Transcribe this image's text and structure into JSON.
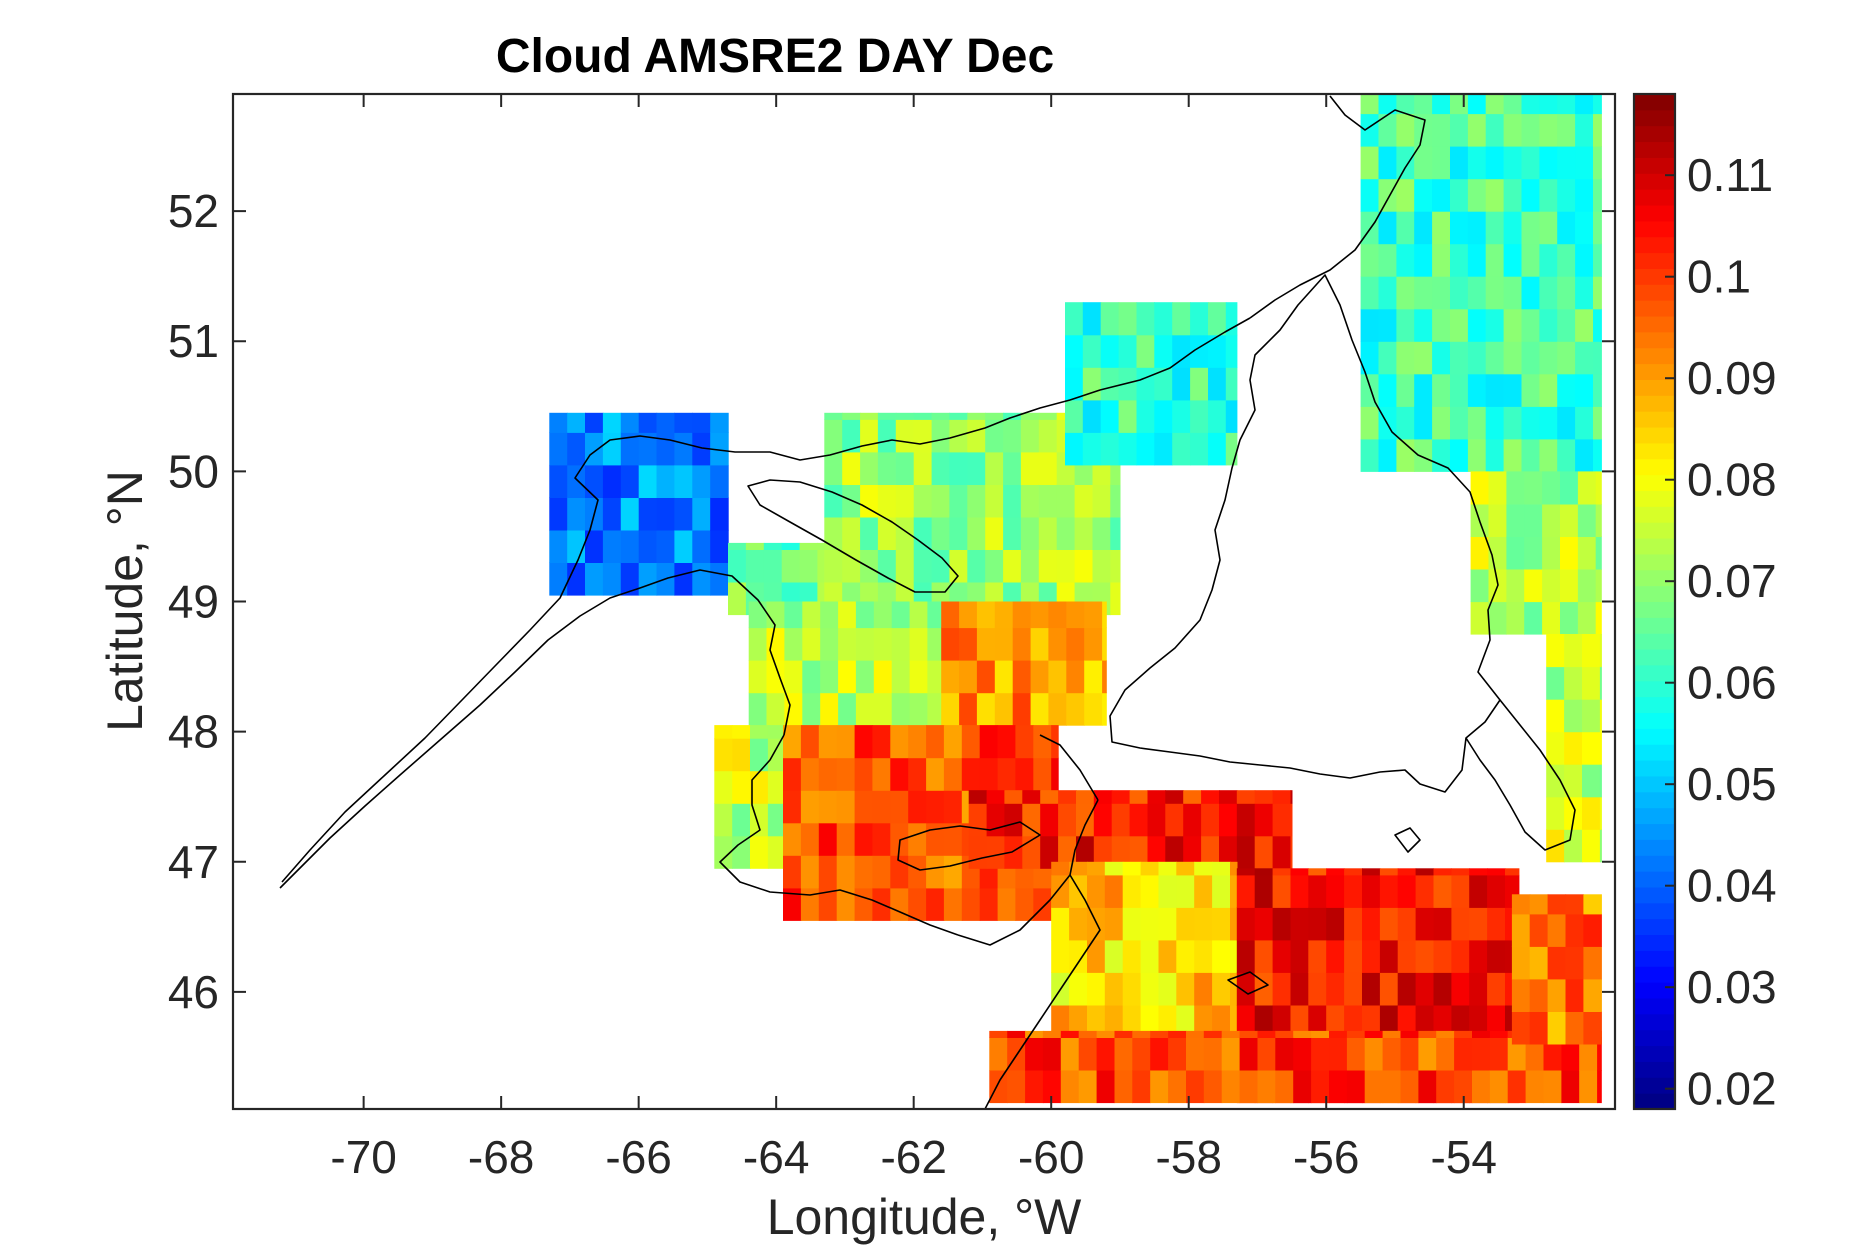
{
  "chart_data": {
    "type": "heatmap",
    "title": "Cloud AMSRE2 DAY Dec",
    "xlabel": "Longitude, °W",
    "ylabel": "Latitude, °N",
    "xlim": [
      -71.9,
      -51.8
    ],
    "ylim": [
      45.1,
      52.9
    ],
    "x_ticks": [
      -70,
      -68,
      -66,
      -64,
      -62,
      -60,
      -58,
      -56,
      -54
    ],
    "y_ticks": [
      46,
      47,
      48,
      49,
      50,
      51,
      52
    ],
    "cell_size_deg": [
      0.26,
      0.25
    ],
    "colormap": "jet",
    "colorbar": {
      "range": [
        0.018,
        0.118
      ],
      "ticks": [
        "0.02",
        "0.03",
        "0.04",
        "0.05",
        "0.06",
        "0.07",
        "0.08",
        "0.09",
        "0.1",
        "0.11"
      ],
      "location": "right"
    },
    "regions": [
      {
        "lon": [
          -67.3,
          -64.7
        ],
        "lat": [
          49.05,
          50.45
        ],
        "mean": 0.043
      },
      {
        "lon": [
          -64.7,
          -63.3
        ],
        "lat": [
          48.9,
          49.45
        ],
        "mean": 0.065
      },
      {
        "lon": [
          -63.3,
          -59.0
        ],
        "lat": [
          48.9,
          50.45
        ],
        "mean": 0.071
      },
      {
        "lon": [
          -59.8,
          -57.3
        ],
        "lat": [
          50.05,
          51.3
        ],
        "mean": 0.061
      },
      {
        "lon": [
          -64.4,
          -61.6
        ],
        "lat": [
          48.05,
          49.0
        ],
        "mean": 0.073
      },
      {
        "lon": [
          -61.6,
          -59.2
        ],
        "lat": [
          48.05,
          49.0
        ],
        "mean": 0.091
      },
      {
        "lon": [
          -64.9,
          -63.9
        ],
        "lat": [
          46.95,
          48.05
        ],
        "mean": 0.075
      },
      {
        "lon": [
          -63.9,
          -59.9
        ],
        "lat": [
          46.55,
          48.05
        ],
        "mean": 0.098
      },
      {
        "lon": [
          -61.2,
          -56.5
        ],
        "lat": [
          46.95,
          47.55
        ],
        "mean": 0.104
      },
      {
        "lon": [
          -60.0,
          -57.3
        ],
        "lat": [
          45.65,
          47.0
        ],
        "mean": 0.085
      },
      {
        "lon": [
          -57.3,
          -53.2
        ],
        "lat": [
          45.15,
          46.95
        ],
        "mean": 0.105
      },
      {
        "lon": [
          -60.9,
          -52.0
        ],
        "lat": [
          45.15,
          45.7
        ],
        "mean": 0.099
      },
      {
        "lon": [
          -53.3,
          -52.0
        ],
        "lat": [
          45.6,
          46.75
        ],
        "mean": 0.094
      },
      {
        "lon": [
          -55.5,
          -52.0
        ],
        "lat": [
          50.0,
          52.9
        ],
        "mean": 0.062
      },
      {
        "lon": [
          -53.9,
          -52.0
        ],
        "lat": [
          48.75,
          50.0
        ],
        "mean": 0.073
      },
      {
        "lon": [
          -52.8,
          -52.0
        ],
        "lat": [
          47.0,
          48.75
        ],
        "mean": 0.075
      }
    ],
    "coastline_drawn": true,
    "grid": false
  }
}
